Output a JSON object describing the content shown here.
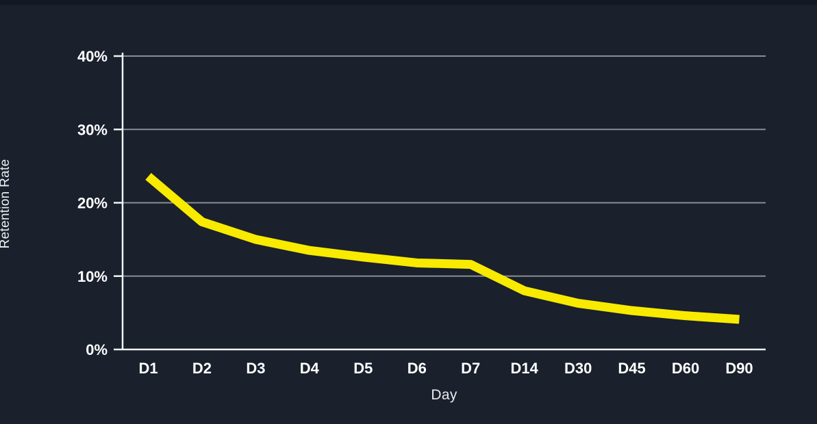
{
  "page": {
    "background_color": "#1a202c",
    "top_edge_color": "#131823"
  },
  "chart_data": {
    "type": "line",
    "title": "",
    "xlabel": "Day",
    "ylabel": "Retention Rate",
    "categories": [
      "D1",
      "D2",
      "D3",
      "D4",
      "D5",
      "D6",
      "D7",
      "D14",
      "D30",
      "D45",
      "D60",
      "D90"
    ],
    "series": [
      {
        "name": "Retention Rate",
        "color": "#f8ea00",
        "values": [
          23.6,
          17.4,
          15.0,
          13.5,
          12.6,
          11.8,
          11.6,
          8.0,
          6.3,
          5.3,
          4.6,
          4.1
        ]
      }
    ],
    "ylim": [
      0,
      40
    ],
    "ytick_labels": [
      "0%",
      "10%",
      "20%",
      "30%",
      "40%"
    ],
    "ytick_values": [
      0,
      10,
      20,
      30,
      40
    ],
    "grid": true,
    "legend_position": "none",
    "colors": {
      "gridline": "#898d94",
      "axis": "#f2f3f5",
      "tick_text": "#ffffff"
    }
  }
}
